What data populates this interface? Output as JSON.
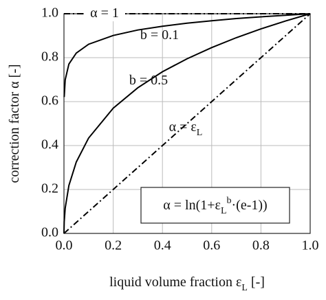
{
  "chart_data": {
    "type": "line",
    "x_label": [
      {
        "text": "liquid volume fraction ε"
      },
      {
        "text": "L",
        "shift": "sub"
      },
      {
        "text": " [-]"
      }
    ],
    "y_label": [
      {
        "text": "correction factor α [-]"
      }
    ],
    "x": [
      0,
      0.001,
      0.005,
      0.02,
      0.05,
      0.1,
      0.2,
      0.3,
      0.4,
      0.5,
      0.6,
      0.7,
      0.8,
      0.9,
      1.0
    ],
    "series": [
      {
        "name": [
          {
            "text": "α = 1"
          }
        ],
        "color": "#000000",
        "dash": "dashdot",
        "values": [
          1,
          1,
          1,
          1,
          1,
          1,
          1,
          1,
          1,
          1,
          1,
          1,
          1,
          1,
          1
        ]
      },
      {
        "name": [
          {
            "text": "b = 0.1"
          }
        ],
        "color": "#000000",
        "dash": "solid",
        "values": [
          null,
          0.621,
          0.699,
          0.771,
          0.821,
          0.861,
          0.901,
          0.926,
          0.943,
          0.957,
          0.968,
          0.978,
          0.986,
          0.993,
          1.0
        ]
      },
      {
        "name": [
          {
            "text": "b = 0.5"
          }
        ],
        "color": "#000000",
        "dash": "solid",
        "values": [
          0,
          0.053,
          0.115,
          0.218,
          0.325,
          0.434,
          0.57,
          0.663,
          0.736,
          0.795,
          0.846,
          0.891,
          0.931,
          0.967,
          1.0
        ]
      },
      {
        "name": [
          {
            "text": "α = ε"
          },
          {
            "text": "L",
            "shift": "sub"
          }
        ],
        "color": "#000000",
        "dash": "dashdot",
        "values": [
          0,
          0.001,
          0.005,
          0.02,
          0.05,
          0.1,
          0.2,
          0.3,
          0.4,
          0.5,
          0.6,
          0.7,
          0.8,
          0.9,
          1.0
        ]
      }
    ],
    "formula": [
      {
        "text": "α =  ln(1+ε"
      },
      {
        "text": "L",
        "shift": "sub"
      },
      {
        "text": "b",
        "shift": "super"
      },
      {
        "text": "·(e-1))"
      }
    ],
    "xlim": [
      0,
      1
    ],
    "ylim": [
      0,
      1
    ],
    "xticks": [
      {
        "value": 0,
        "label": "0.0"
      },
      {
        "value": 0.2,
        "label": "0.2"
      },
      {
        "value": 0.4,
        "label": "0.4"
      },
      {
        "value": 0.6,
        "label": "0.6"
      },
      {
        "value": 0.8,
        "label": "0.8"
      },
      {
        "value": 1,
        "label": "1.0"
      }
    ],
    "yticks": [
      {
        "value": 0,
        "label": "0.0"
      },
      {
        "value": 0.2,
        "label": "0.2"
      },
      {
        "value": 0.4,
        "label": "0.4"
      },
      {
        "value": 0.6,
        "label": "0.6"
      },
      {
        "value": 0.8,
        "label": "0.8"
      },
      {
        "value": 1,
        "label": "1.0"
      }
    ],
    "grid": true
  }
}
